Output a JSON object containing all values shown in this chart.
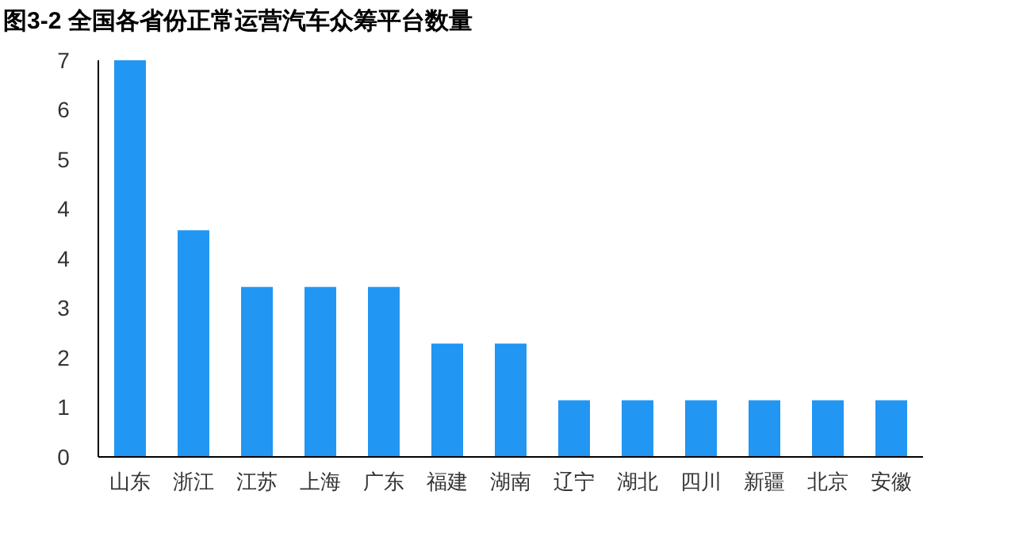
{
  "chart_data": {
    "type": "bar",
    "title": "图3-2  全国各省份正常运营汽车众筹平台数量",
    "categories": [
      "山东",
      "浙江",
      "江苏",
      "上海",
      "广东",
      "福建",
      "湖南",
      "辽宁",
      "湖北",
      "四川",
      "新疆",
      "北京",
      "安徽"
    ],
    "values": [
      7,
      4,
      3,
      3,
      3,
      2,
      2,
      1,
      1,
      1,
      1,
      1,
      1
    ],
    "color": "#2196f3",
    "ylim": [
      0,
      7
    ],
    "yticks": [
      {
        "value": 0,
        "label": "0"
      },
      {
        "value": 0.875,
        "label": "1"
      },
      {
        "value": 1.75,
        "label": "2"
      },
      {
        "value": 2.625,
        "label": "3"
      },
      {
        "value": 3.5,
        "label": "4"
      },
      {
        "value": 4.375,
        "label": "4"
      },
      {
        "value": 5.25,
        "label": "5"
      },
      {
        "value": 6.125,
        "label": "6"
      },
      {
        "value": 7,
        "label": "7"
      }
    ],
    "grid": false
  }
}
